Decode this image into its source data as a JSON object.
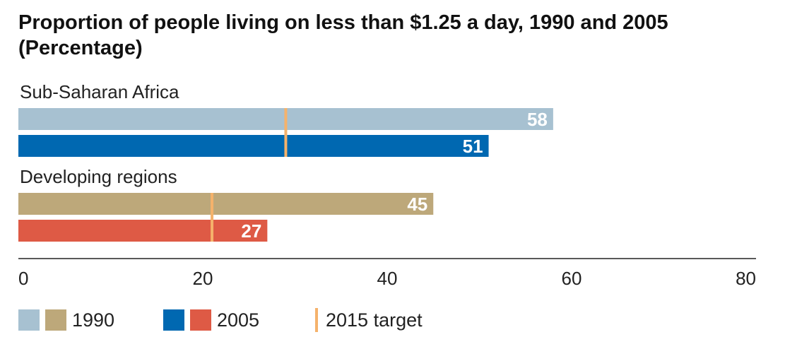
{
  "title": {
    "line1": "Proportion of people living on less than $1.25 a day, 1990 and 2005",
    "line2": "(Percentage)"
  },
  "chart_data": {
    "type": "bar",
    "orientation": "horizontal",
    "title": "Proportion of people living on less than $1.25 a day, 1990 and 2005",
    "subtitle": "(Percentage)",
    "xlim": [
      0,
      80
    ],
    "x_ticks": [
      0,
      20,
      40,
      60,
      80
    ],
    "grid": false,
    "groups": [
      {
        "name": "Sub-Saharan Africa",
        "bars": [
          {
            "series": "1990",
            "value": 58,
            "label": "58",
            "color": "#a7c1d1"
          },
          {
            "series": "2005",
            "value": 51,
            "label": "51",
            "color": "#0068b1"
          }
        ],
        "target": 29
      },
      {
        "name": "Developing regions",
        "bars": [
          {
            "series": "1990",
            "value": 45,
            "label": "45",
            "color": "#bda87a"
          },
          {
            "series": "2005",
            "value": 27,
            "label": "27",
            "color": "#de5a45"
          }
        ],
        "target": 21
      }
    ],
    "target_color": "#f5b26b",
    "legend": {
      "placement": "bottom",
      "entries": [
        {
          "label": "1990",
          "colors": [
            "#a7c1d1",
            "#bda87a"
          ]
        },
        {
          "label": "2005",
          "colors": [
            "#0068b1",
            "#de5a45"
          ]
        },
        {
          "label": "2015 target",
          "colors": [
            "#f5b26b"
          ]
        }
      ]
    }
  }
}
